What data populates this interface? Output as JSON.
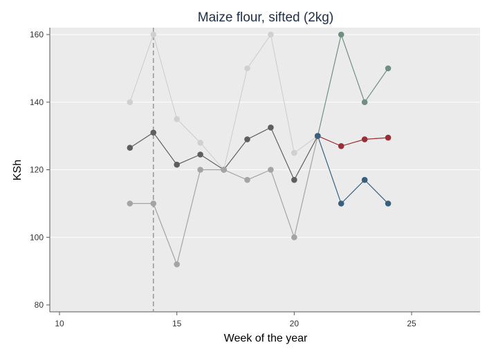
{
  "chart_data": {
    "type": "line",
    "title": "Maize flour, sifted (2kg)",
    "xlabel": "Week of the year",
    "ylabel": "KSh",
    "xlim": [
      10,
      25
    ],
    "ylim": [
      80,
      162
    ],
    "xticks": [
      10,
      15,
      20,
      25
    ],
    "yticks": [
      80,
      100,
      120,
      140,
      160
    ],
    "grid": "horizontal",
    "legend": "none",
    "reference_line_x": 14,
    "series": [
      {
        "color": "#d0d0d0",
        "x": [
          13,
          14,
          15,
          16,
          17,
          18,
          19,
          20,
          21
        ],
        "values": [
          140,
          160,
          135,
          128,
          120,
          150,
          160,
          125,
          130
        ]
      },
      {
        "color": "#5e5e5e",
        "x": [
          13,
          14,
          15,
          16,
          17,
          18,
          19,
          20,
          21
        ],
        "values": [
          126.5,
          131,
          121.5,
          124.5,
          120,
          129,
          132.5,
          117,
          130
        ]
      },
      {
        "color": "#a4a4a4",
        "x": [
          13,
          14,
          15,
          16,
          17,
          18,
          19,
          20,
          21
        ],
        "values": [
          110,
          110,
          92,
          120,
          120,
          117,
          120,
          100,
          130
        ]
      },
      {
        "color": "#6f8f80",
        "x": [
          21,
          22,
          23,
          24
        ],
        "values": [
          130,
          160,
          140,
          150
        ]
      },
      {
        "color": "#9b2d35",
        "x": [
          21,
          22,
          23,
          24
        ],
        "values": [
          130,
          127,
          129,
          129.5
        ]
      },
      {
        "color": "#36607e",
        "x": [
          21,
          22,
          23,
          24
        ],
        "values": [
          130,
          110,
          117,
          110
        ]
      }
    ]
  }
}
